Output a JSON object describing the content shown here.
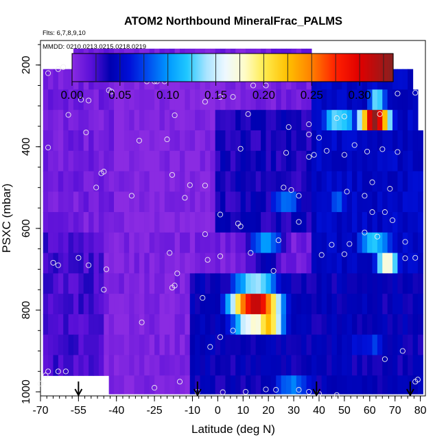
{
  "chart_data": {
    "type": "heatmap",
    "title": "ATOM2 Northbound MineralFrac_PALMS",
    "annotations": {
      "flights": "Flts: 6,7,8,9,10",
      "dates": "MMDD: 0210,0213,0215,0218,0219"
    },
    "xlabel": "Latitude (deg N)",
    "ylabel": "PSXC (mbar)",
    "xlim": [
      -70,
      82
    ],
    "ylim": [
      1010,
      140
    ],
    "y_reversed": true,
    "x_ticks": [
      -70,
      -55,
      -40,
      -25,
      -10,
      0,
      10,
      20,
      30,
      40,
      50,
      60,
      70,
      80
    ],
    "x_tick_labels": [
      "-70",
      "-55",
      "-40",
      "-25",
      "-10",
      "0",
      "10",
      "20",
      "30",
      "40",
      "50",
      "60",
      "70",
      "80"
    ],
    "y_ticks": [
      200,
      400,
      600,
      800,
      1000
    ],
    "y_tick_labels": [
      "200",
      "400",
      "600",
      "800",
      "1000"
    ],
    "colorbar": {
      "ticks": [
        0.0,
        0.05,
        0.1,
        0.15,
        0.2,
        0.25,
        0.3
      ],
      "tick_labels": [
        "0.00",
        "0.05",
        "0.10",
        "0.15",
        "0.20",
        "0.25",
        "0.30"
      ],
      "range": [
        0,
        0.335
      ],
      "stops": [
        {
          "v": 0.0,
          "c": "#8a2be2"
        },
        {
          "v": 0.02,
          "c": "#5a10d8"
        },
        {
          "v": 0.04,
          "c": "#0000b0"
        },
        {
          "v": 0.06,
          "c": "#0010d8"
        },
        {
          "v": 0.08,
          "c": "#0050f0"
        },
        {
          "v": 0.1,
          "c": "#0098ff"
        },
        {
          "v": 0.12,
          "c": "#20c8ff"
        },
        {
          "v": 0.14,
          "c": "#a8e4ff"
        },
        {
          "v": 0.16,
          "c": "#eef8ff"
        },
        {
          "v": 0.18,
          "c": "#fffcc8"
        },
        {
          "v": 0.2,
          "c": "#ffec50"
        },
        {
          "v": 0.225,
          "c": "#ffc000"
        },
        {
          "v": 0.25,
          "c": "#ff8000"
        },
        {
          "v": 0.275,
          "c": "#ff2000"
        },
        {
          "v": 0.3,
          "c": "#e00000"
        },
        {
          "v": 0.335,
          "c": "#882020"
        }
      ]
    },
    "grid": false,
    "latitude_bins": {
      "start": -69,
      "end": 81,
      "width": 2
    },
    "pressure_bins": [
      160,
      210,
      260,
      310,
      360,
      410,
      460,
      510,
      560,
      610,
      660,
      710,
      760,
      810,
      860,
      910,
      960,
      1005
    ],
    "background_value": 0.01,
    "coverage": [
      {
        "p_bot": 210,
        "lat_min": -56,
        "lat_max": 37
      },
      {
        "p_bot": 260,
        "lat_min": -68,
        "lat_max": 76
      },
      {
        "p_bot": 360,
        "lat_min": -68,
        "lat_max": 79
      },
      {
        "p_bot": 960,
        "lat_min": -68,
        "lat_max": 80
      },
      {
        "p_bot": 1005,
        "lat_min": -43,
        "lat_max": 80
      }
    ],
    "features": [
      {
        "lat_min": -40,
        "lat_max": 4,
        "p_top": 210,
        "p_bot": 610,
        "value": 0.002
      },
      {
        "lat_min": -68,
        "lat_max": -45,
        "p_top": 610,
        "p_bot": 1005,
        "value": 0.025
      },
      {
        "lat_min": -45,
        "lat_max": -10,
        "p_top": 610,
        "p_bot": 1005,
        "value": 0.005
      },
      {
        "lat_min": -10,
        "lat_max": 80,
        "p_top": 710,
        "p_bot": 1005,
        "value": 0.04
      },
      {
        "lat_min": 0,
        "lat_max": 37,
        "p_top": 310,
        "p_bot": 610,
        "value": 0.035
      },
      {
        "lat_min": 37,
        "lat_max": 80,
        "p_top": 210,
        "p_bot": 710,
        "value": 0.05
      },
      {
        "lat": 15,
        "p": 790,
        "lat_half": 13,
        "p_half": 75,
        "value": 0.32
      },
      {
        "lat": 20,
        "p": 835,
        "lat_half": 8,
        "p_half": 45,
        "value": 0.22
      },
      {
        "lat": 14,
        "p": 745,
        "lat_half": 12,
        "p_half": 35,
        "value": 0.12
      },
      {
        "lat": 19,
        "p": 650,
        "lat_half": 9,
        "p_half": 40,
        "value": 0.13
      },
      {
        "lat": 62,
        "p": 335,
        "lat_half": 8,
        "p_half": 28,
        "value": 0.33
      },
      {
        "lat": 48,
        "p": 335,
        "lat_half": 10,
        "p_half": 35,
        "value": 0.13
      },
      {
        "lat": 63,
        "p": 280,
        "lat_half": 5,
        "p_half": 18,
        "value": 0.15
      },
      {
        "lat": 67,
        "p": 685,
        "lat_half": 6,
        "p_half": 28,
        "value": 0.18
      },
      {
        "lat": 62,
        "p": 640,
        "lat_half": 10,
        "p_half": 35,
        "value": 0.12
      },
      {
        "lat": 27,
        "p": 540,
        "lat_half": 9,
        "p_half": 45,
        "value": 0.09
      },
      {
        "lat": 48,
        "p": 520,
        "lat_half": 8,
        "p_half": 80,
        "value": 0.08
      },
      {
        "lat": 60,
        "p": 890,
        "lat_half": 15,
        "p_half": 70,
        "value": 0.07
      },
      {
        "lat": 30,
        "p": 980,
        "lat_half": 12,
        "p_half": 25,
        "value": 0.09
      }
    ],
    "sample_points": [
      [
        -53,
        190
      ],
      [
        -61,
        205
      ],
      [
        -67,
        220
      ],
      [
        -63,
        210
      ],
      [
        -11,
        220
      ],
      [
        -9,
        218
      ],
      [
        34,
        205
      ],
      [
        49,
        205
      ],
      [
        19,
        250
      ],
      [
        14,
        250
      ],
      [
        -42,
        265
      ],
      [
        -43,
        262
      ],
      [
        -28,
        240
      ],
      [
        -24,
        240
      ],
      [
        -25,
        240
      ],
      [
        -21,
        240
      ],
      [
        -54,
        285
      ],
      [
        -51,
        287
      ],
      [
        -59,
        322
      ],
      [
        -5,
        290
      ],
      [
        1,
        278
      ],
      [
        6,
        278
      ],
      [
        -17,
        323
      ],
      [
        12,
        320
      ],
      [
        47,
        330
      ],
      [
        50,
        326
      ],
      [
        36,
        345
      ],
      [
        28,
        352
      ],
      [
        64,
        320
      ],
      [
        71,
        270
      ],
      [
        78,
        268
      ],
      [
        36,
        370
      ],
      [
        40,
        378
      ],
      [
        54,
        396
      ],
      [
        -52,
        365
      ],
      [
        -31,
        385
      ],
      [
        -20,
        382
      ],
      [
        -67,
        402
      ],
      [
        59,
        412
      ],
      [
        65,
        406
      ],
      [
        71,
        413
      ],
      [
        36,
        425
      ],
      [
        38,
        420
      ],
      [
        43,
        410
      ],
      [
        50,
        420
      ],
      [
        27,
        415
      ],
      [
        9,
        405
      ],
      [
        -46,
        465
      ],
      [
        -45,
        461
      ],
      [
        -18,
        469
      ],
      [
        -11,
        494
      ],
      [
        -5,
        495
      ],
      [
        26,
        500
      ],
      [
        29,
        506
      ],
      [
        32,
        520
      ],
      [
        58,
        520
      ],
      [
        68,
        503
      ],
      [
        61,
        487
      ],
      [
        51,
        510
      ],
      [
        -48,
        500
      ],
      [
        -34,
        520
      ],
      [
        -13,
        525
      ],
      [
        1,
        566
      ],
      [
        66,
        560
      ],
      [
        61,
        560
      ],
      [
        8,
        588
      ],
      [
        9,
        595
      ],
      [
        32,
        584
      ],
      [
        -55,
        672
      ],
      [
        -65,
        684
      ],
      [
        -63,
        690
      ],
      [
        -51,
        690
      ],
      [
        -44,
        700
      ],
      [
        -4,
        677
      ],
      [
        1,
        668
      ],
      [
        -19,
        660
      ],
      [
        -16,
        710
      ],
      [
        24,
        629
      ],
      [
        13,
        660
      ],
      [
        22,
        704
      ],
      [
        41,
        665
      ],
      [
        45,
        640
      ],
      [
        52,
        638
      ],
      [
        50,
        663
      ],
      [
        58,
        610
      ],
      [
        63,
        620
      ],
      [
        69,
        580
      ],
      [
        74,
        633
      ],
      [
        74,
        673
      ],
      [
        78,
        672
      ],
      [
        -5,
        614
      ],
      [
        -45,
        750
      ],
      [
        -18,
        745
      ],
      [
        -17,
        740
      ],
      [
        -6,
        770
      ],
      [
        6,
        850
      ],
      [
        1,
        866
      ],
      [
        -3,
        890
      ],
      [
        -30,
        830
      ],
      [
        -67,
        950
      ],
      [
        -63,
        950
      ],
      [
        -60,
        950
      ],
      [
        -15,
        975
      ],
      [
        -25,
        990
      ],
      [
        -8,
        1000
      ],
      [
        2,
        1001
      ],
      [
        11,
        1000
      ],
      [
        19,
        994
      ],
      [
        23,
        995
      ],
      [
        32,
        995
      ],
      [
        36,
        1000
      ],
      [
        40,
        1005
      ],
      [
        47,
        1008
      ],
      [
        78,
        975
      ],
      [
        79,
        970
      ],
      [
        66,
        920
      ],
      [
        73,
        900
      ],
      [
        -70,
        980
      ],
      [
        -68,
        960
      ]
    ],
    "flight_markers": [
      -55,
      -8,
      39,
      76
    ]
  }
}
